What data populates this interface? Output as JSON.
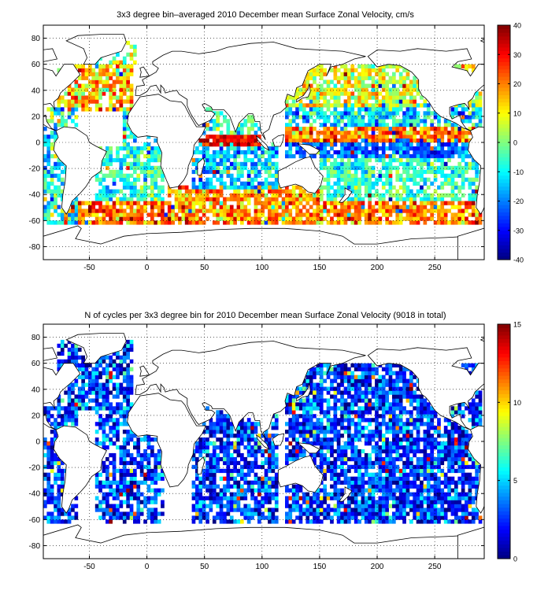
{
  "chart_data": [
    {
      "type": "heatmap",
      "title": "3x3 degree bin–averaged 2010 December mean Surface Zonal Velocity, cm/s",
      "x_ticks": [
        -50,
        0,
        50,
        100,
        150,
        200,
        250
      ],
      "y_ticks": [
        80,
        60,
        40,
        20,
        0,
        -20,
        -40,
        -60,
        -80
      ],
      "xlim": [
        -90,
        293
      ],
      "ylim": [
        -90,
        90
      ],
      "bin_size_deg": 3,
      "grid": true,
      "colorbar": {
        "range": [
          -40,
          40
        ],
        "ticks": [
          40,
          30,
          20,
          10,
          0,
          -10,
          -20,
          -30,
          -40
        ],
        "colormap": "jet",
        "placement": "right"
      },
      "bands": [
        {
          "lon": [
            -90,
            -62
          ],
          "lat": [
            -62,
            25
          ],
          "mean": -8,
          "spread": 14,
          "density": 0.75
        },
        {
          "lon": [
            -78,
            -12
          ],
          "lat": [
            25,
            60
          ],
          "mean": 14,
          "spread": 14,
          "density": 0.8
        },
        {
          "lon": [
            -50,
            -10
          ],
          "lat": [
            60,
            78
          ],
          "mean": 2,
          "spread": 12,
          "density": 0.6
        },
        {
          "lon": [
            -20,
            14
          ],
          "lat": [
            -5,
            25
          ],
          "mean": -12,
          "spread": 12,
          "density": 0.7
        },
        {
          "lon": [
            -45,
            14
          ],
          "lat": [
            -45,
            -5
          ],
          "mean": -6,
          "spread": 10,
          "density": 0.7
        },
        {
          "lon": [
            -70,
            20
          ],
          "lat": [
            -62,
            -45
          ],
          "mean": 22,
          "spread": 12,
          "density": 0.85
        },
        {
          "lon": [
            45,
            98
          ],
          "lat": [
            -2,
            6
          ],
          "mean": 32,
          "spread": 8,
          "density": 0.9
        },
        {
          "lon": [
            45,
            100
          ],
          "lat": [
            6,
            25
          ],
          "mean": -6,
          "spread": 12,
          "density": 0.7
        },
        {
          "lon": [
            40,
            112
          ],
          "lat": [
            -35,
            -2
          ],
          "mean": -14,
          "spread": 12,
          "density": 0.75
        },
        {
          "lon": [
            20,
            150
          ],
          "lat": [
            -62,
            -35
          ],
          "mean": 18,
          "spread": 12,
          "density": 0.8
        },
        {
          "lon": [
            120,
            290
          ],
          "lat": [
            28,
            58
          ],
          "mean": 8,
          "spread": 12,
          "density": 0.75
        },
        {
          "lon": [
            120,
            290
          ],
          "lat": [
            12,
            28
          ],
          "mean": -12,
          "spread": 12,
          "density": 0.8
        },
        {
          "lon": [
            120,
            290
          ],
          "lat": [
            2,
            12
          ],
          "mean": 20,
          "spread": 12,
          "density": 0.85
        },
        {
          "lon": [
            120,
            290
          ],
          "lat": [
            -10,
            2
          ],
          "mean": -22,
          "spread": 10,
          "density": 0.85
        },
        {
          "lon": [
            150,
            290
          ],
          "lat": [
            -45,
            -10
          ],
          "mean": -6,
          "spread": 10,
          "density": 0.7
        },
        {
          "lon": [
            150,
            290
          ],
          "lat": [
            -62,
            -45
          ],
          "mean": 20,
          "spread": 12,
          "density": 0.85
        }
      ]
    },
    {
      "type": "heatmap",
      "title": "N of cycles per 3x3 degree bin for 2010 December mean Surface Zonal Velocity (9018 in total)",
      "x_ticks": [
        -50,
        0,
        50,
        100,
        150,
        200,
        250
      ],
      "y_ticks": [
        80,
        60,
        40,
        20,
        0,
        -20,
        -40,
        -60,
        -80
      ],
      "xlim": [
        -90,
        293
      ],
      "ylim": [
        -90,
        90
      ],
      "bin_size_deg": 3,
      "grid": true,
      "total_cycles": 9018,
      "colorbar": {
        "range": [
          0,
          15
        ],
        "ticks": [
          15,
          10,
          5,
          0
        ],
        "colormap": "jet",
        "placement": "right"
      },
      "bands": [
        {
          "lon": [
            -90,
            -62
          ],
          "lat": [
            -62,
            25
          ],
          "mean": 2.5,
          "spread": 2.5,
          "density": 0.75
        },
        {
          "lon": [
            -78,
            -12
          ],
          "lat": [
            25,
            78
          ],
          "mean": 3,
          "spread": 3,
          "density": 0.75
        },
        {
          "lon": [
            -45,
            14
          ],
          "lat": [
            -62,
            25
          ],
          "mean": 2.5,
          "spread": 2.5,
          "density": 0.7
        },
        {
          "lon": [
            40,
            112
          ],
          "lat": [
            -62,
            25
          ],
          "mean": 2.5,
          "spread": 2.5,
          "density": 0.75
        },
        {
          "lon": [
            120,
            290
          ],
          "lat": [
            -62,
            58
          ],
          "mean": 2.5,
          "spread": 2.5,
          "density": 0.8
        },
        {
          "lon": [
            120,
            145
          ],
          "lat": [
            25,
            45
          ],
          "mean": 9,
          "spread": 4,
          "density": 0.8
        }
      ]
    }
  ]
}
